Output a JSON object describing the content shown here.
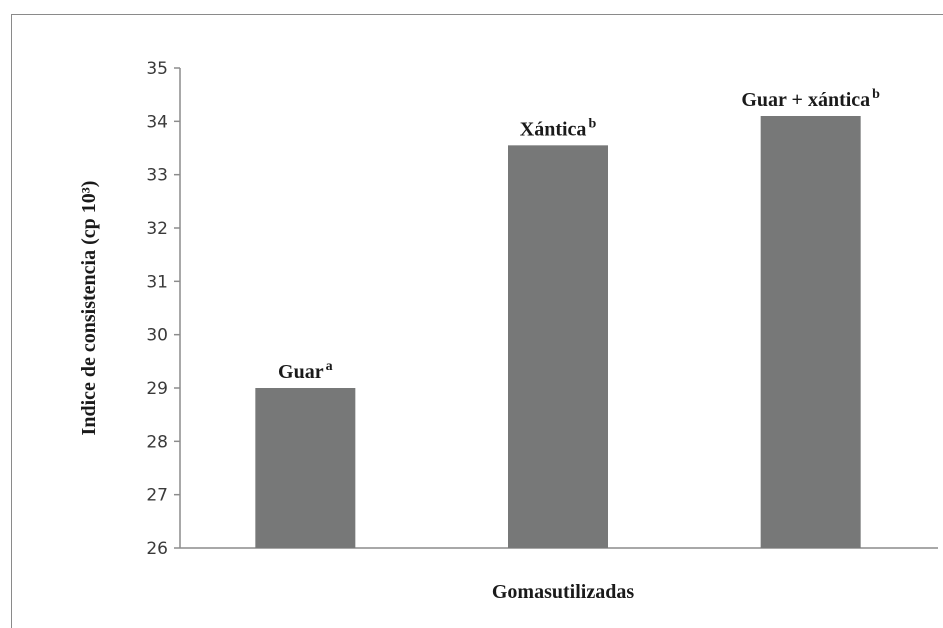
{
  "chart_data": {
    "type": "bar",
    "categories": [
      "Guar",
      "Xántica",
      "Guar + xántica"
    ],
    "superscripts": [
      "a",
      "b",
      "b"
    ],
    "values": [
      29.0,
      33.55,
      34.1
    ],
    "xlabel": "Gomasutilizadas",
    "ylabel": "Indice de consistencia  (cp 10³)",
    "ylim": [
      26,
      35
    ],
    "yticks": [
      26,
      27,
      28,
      29,
      30,
      31,
      32,
      33,
      34,
      35
    ],
    "grid": false,
    "legend": "none",
    "colors": {
      "bar": "#777878",
      "axis": "#8c8c8c",
      "text": "#1a1a1a"
    }
  }
}
